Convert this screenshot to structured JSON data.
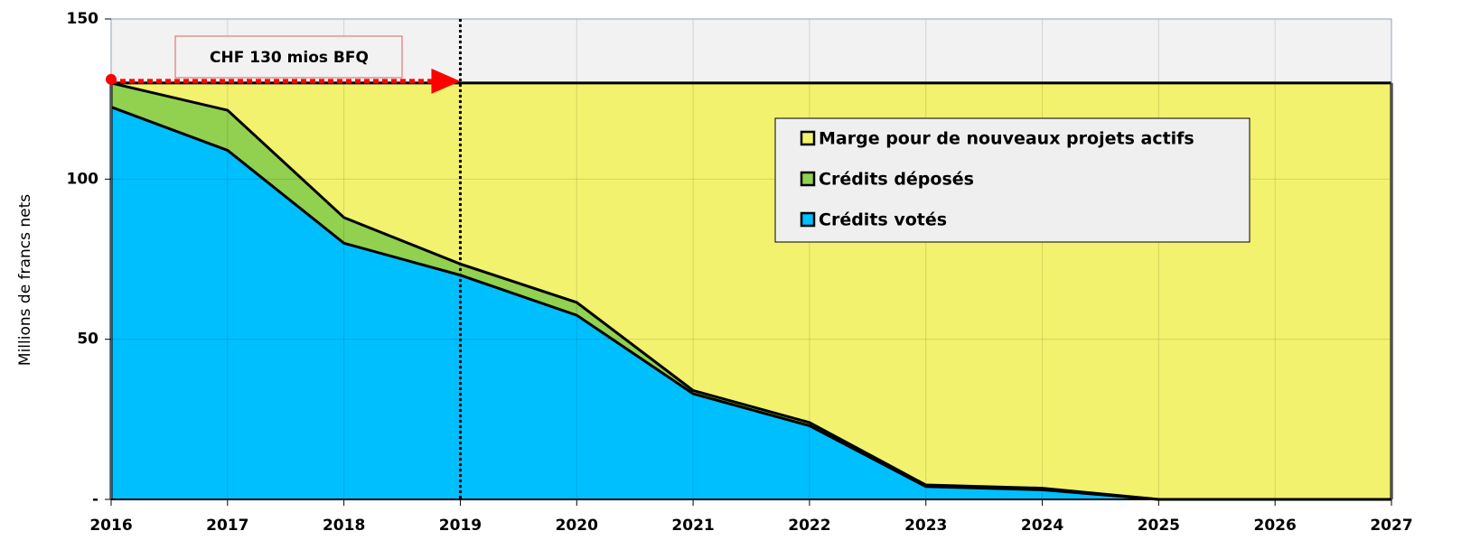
{
  "chart_data": {
    "type": "stacked-area",
    "y_label": "Millions de francs nets",
    "x": [
      2016,
      2017,
      2018,
      2019,
      2020,
      2021,
      2022,
      2023,
      2024,
      2025,
      2026,
      2027
    ],
    "series": [
      {
        "name": "Crédits votés",
        "color": "#00bfff",
        "values": [
          122.5,
          109,
          80,
          70,
          57.5,
          33,
          23,
          4,
          3,
          0,
          0,
          0
        ]
      },
      {
        "name": "Crédits déposés",
        "color": "#92d050",
        "values": [
          7.5,
          12.5,
          8,
          3.5,
          4,
          1,
          1,
          0.5,
          0.5,
          0,
          0,
          0
        ]
      },
      {
        "name": "Marge pour de nouveaux projets actifs",
        "color": "#f2f26e",
        "values": [
          0,
          8.5,
          42,
          56.5,
          68.5,
          96,
          106,
          125.5,
          126.5,
          130,
          130,
          130
        ]
      }
    ],
    "xlim": [
      2016,
      2027
    ],
    "xticks": [
      2016,
      2017,
      2018,
      2019,
      2020,
      2021,
      2022,
      2023,
      2024,
      2025,
      2026,
      2027
    ],
    "ylim": [
      0,
      150
    ],
    "yticks": [
      {
        "value": 0,
        "label": "-"
      },
      50,
      100,
      150
    ],
    "grid": true,
    "legend": "upper right",
    "annotation": {
      "text": "CHF 130 mios BFQ",
      "x_start": 2016,
      "x_end": 2019,
      "y": 130
    },
    "reference_line_x": 2019
  }
}
